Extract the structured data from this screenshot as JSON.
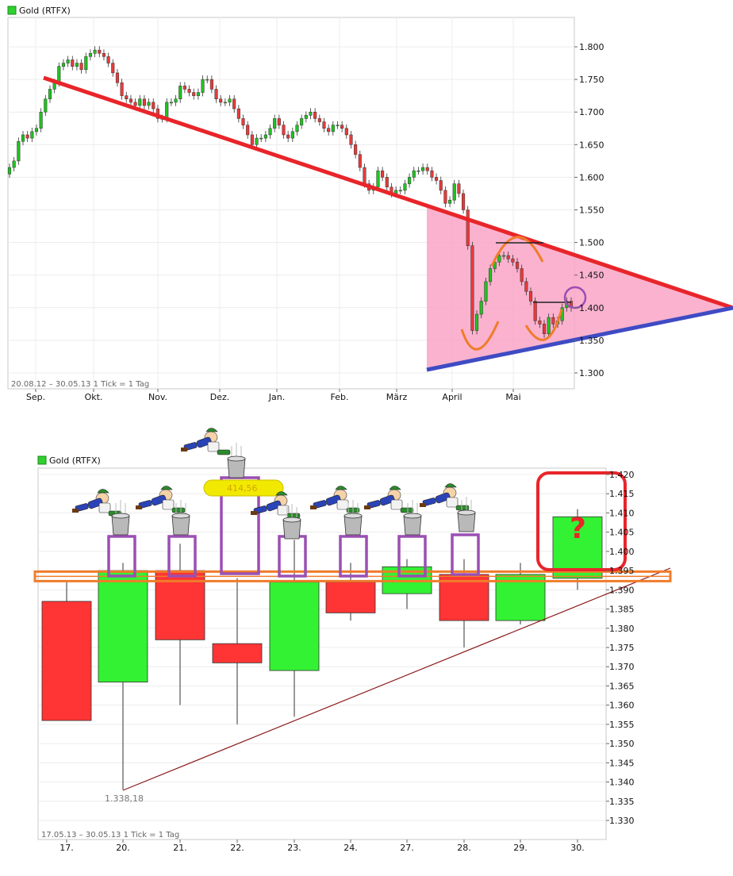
{
  "chart_data": [
    {
      "type": "candlestick",
      "legend": "Gold (RTFX)",
      "footer": "20.08.12 – 30.05.13   1 Tick = 1 Tag",
      "x_ticks": [
        "Sep.",
        "Okt.",
        "Nov.",
        "Dez.",
        "Jan.",
        "Feb.",
        "März",
        "April",
        "Mai"
      ],
      "y_ticks": [
        "1.800",
        "1.750",
        "1.700",
        "1.650",
        "1.600",
        "1.550",
        "1.500",
        "1.450",
        "1.400",
        "1.350",
        "1.300"
      ],
      "ylim": [
        1.3,
        1.8
      ],
      "series": [
        {
          "values": [
            1.615,
            1.625,
            1.655,
            1.665,
            1.66,
            1.67,
            1.675,
            1.7,
            1.72,
            1.735,
            1.745,
            1.77,
            1.775,
            1.78,
            1.77,
            1.775,
            1.765,
            1.785,
            1.79,
            1.795,
            1.79,
            1.785,
            1.775,
            1.76,
            1.745,
            1.725,
            1.72,
            1.715,
            1.71,
            1.72,
            1.71,
            1.715,
            1.705,
            1.69,
            1.69,
            1.715,
            1.715,
            1.72,
            1.74,
            1.735,
            1.73,
            1.725,
            1.73,
            1.75,
            1.75,
            1.735,
            1.72,
            1.715,
            1.715,
            1.72,
            1.705,
            1.69,
            1.68,
            1.665,
            1.65,
            1.66,
            1.66,
            1.665,
            1.675,
            1.69,
            1.68,
            1.665,
            1.66,
            1.67,
            1.68,
            1.69,
            1.695,
            1.7,
            1.69,
            1.685,
            1.675,
            1.67,
            1.68,
            1.68,
            1.675,
            1.665,
            1.65,
            1.635,
            1.615,
            1.59,
            1.58,
            1.585,
            1.61,
            1.6,
            1.585,
            1.575,
            1.58,
            1.58,
            1.59,
            1.6,
            1.61,
            1.61,
            1.615,
            1.61,
            1.6,
            1.595,
            1.58,
            1.56,
            1.565,
            1.59,
            1.575,
            1.55,
            1.495,
            1.365,
            1.39,
            1.41,
            1.44,
            1.46,
            1.47,
            1.48,
            1.48,
            1.475,
            1.47,
            1.46,
            1.44,
            1.425,
            1.41,
            1.38,
            1.375,
            1.36,
            1.385,
            1.375,
            1.38,
            1.4,
            1.41,
            1.4
          ]
        }
      ],
      "annotations": [
        {
          "type": "resistance-line",
          "color": "#e8252a"
        },
        {
          "type": "support-line",
          "color": "#3f4bc4"
        },
        {
          "type": "triangle",
          "color": "#f9a5c6"
        },
        {
          "type": "inverse-head-shoulders",
          "color": "#f07c2a"
        }
      ]
    },
    {
      "type": "candlestick",
      "legend": "Gold (RTFX)",
      "footer": "17.05.13 – 30.05.13   1 Tick = 1 Tag",
      "x_ticks": [
        "17.",
        "20.",
        "21.",
        "22.",
        "23.",
        "24.",
        "27.",
        "28.",
        "29.",
        "30."
      ],
      "y_ticks": [
        "1.420",
        "1.415",
        "1.410",
        "1.405",
        "1.400",
        "1.395",
        "1.390",
        "1.385",
        "1.380",
        "1.375",
        "1.370",
        "1.365",
        "1.360",
        "1.355",
        "1.350",
        "1.345",
        "1.340",
        "1.335",
        "1.330"
      ],
      "ylim": [
        1.327,
        1.422
      ],
      "series": [
        {
          "open": [
            1.387,
            1.366,
            1.395,
            1.376,
            1.369,
            1.392,
            1.389,
            1.394,
            1.382,
            1.393
          ],
          "close": [
            1.356,
            1.395,
            1.377,
            1.371,
            1.392,
            1.384,
            1.396,
            1.382,
            1.394,
            1.409
          ],
          "high": [
            1.392,
            1.397,
            1.402,
            1.393,
            1.403,
            1.397,
            1.398,
            1.398,
            1.397,
            1.411
          ],
          "low": [
            1.356,
            1.338,
            1.36,
            1.355,
            1.357,
            1.382,
            1.385,
            1.375,
            1.381,
            1.39
          ]
        }
      ],
      "annotations": [
        {
          "type": "low-label",
          "text": "1.338,18"
        },
        {
          "type": "badge",
          "text": "414,56",
          "color": "#f2e900"
        },
        {
          "type": "question",
          "text": "?",
          "color": "#e8252a"
        },
        {
          "type": "resistance-band",
          "value": 1.3935,
          "color": "#f07c2a"
        },
        {
          "type": "highlight-boxes",
          "color": "#9b4fb3"
        }
      ]
    }
  ]
}
